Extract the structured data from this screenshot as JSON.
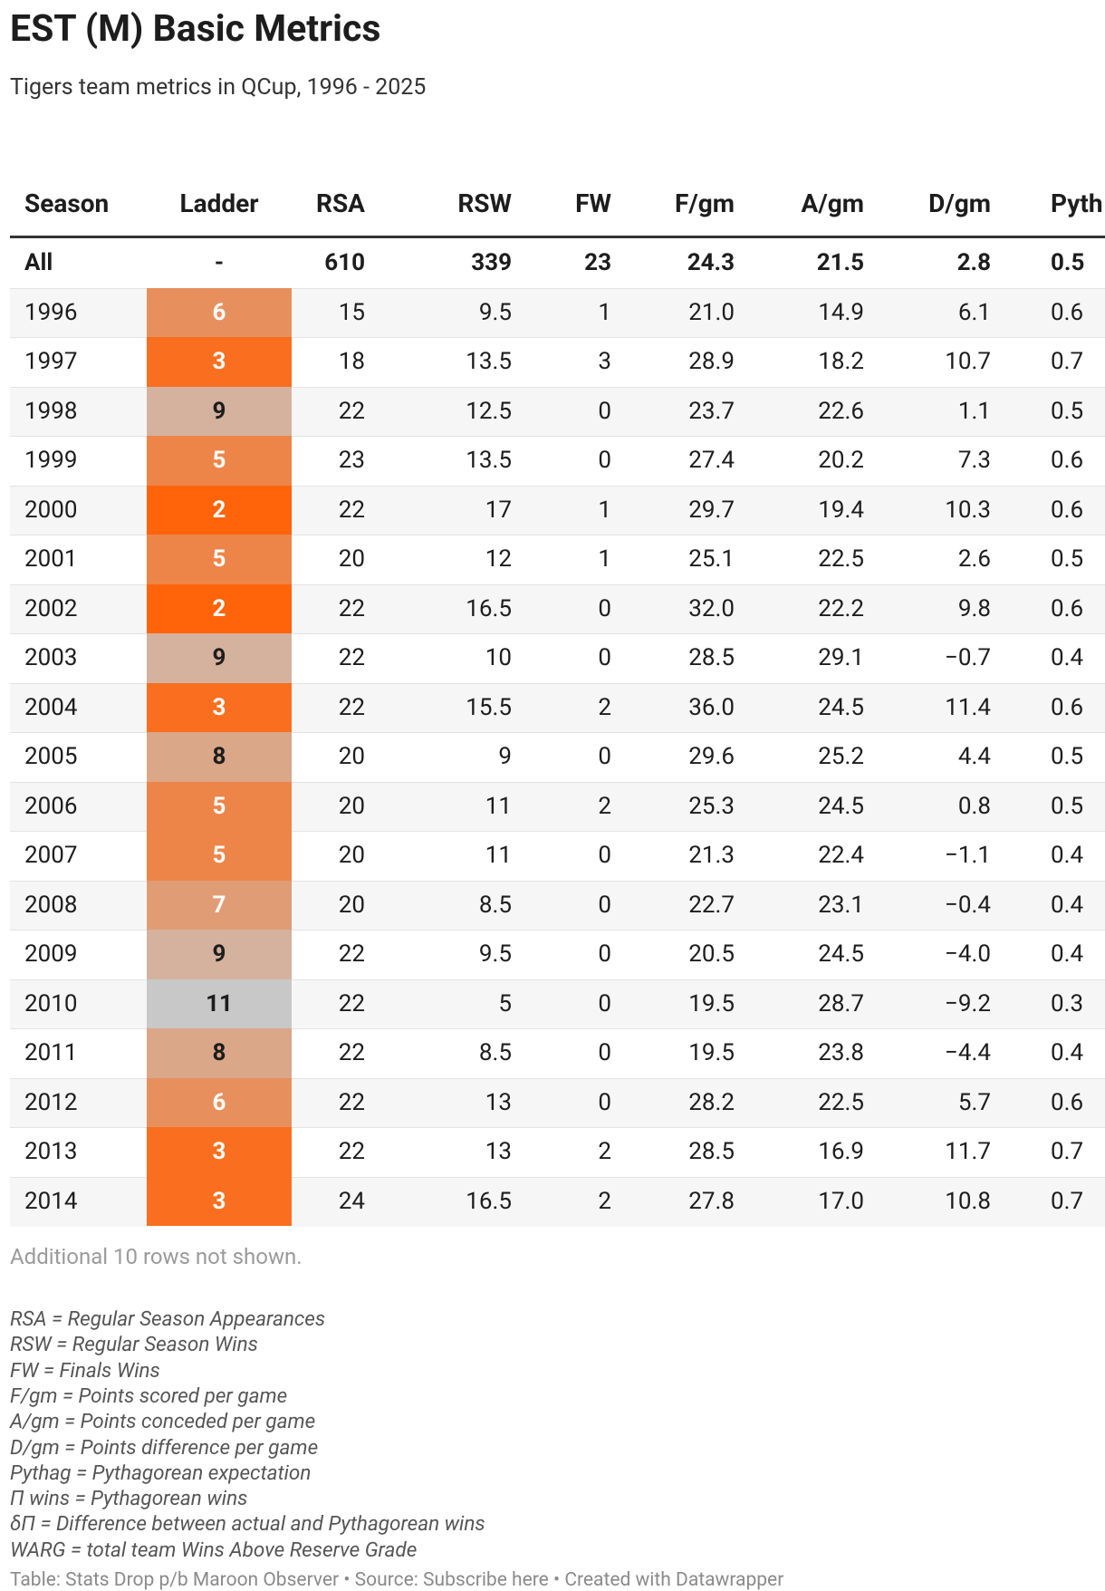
{
  "header": {
    "title": "EST (M) Basic Metrics",
    "subtitle": "Tigers team metrics in QCup, 1996 - 2025"
  },
  "table": {
    "columns": [
      "Season",
      "Ladder",
      "RSA",
      "RSW",
      "FW",
      "F/gm",
      "A/gm",
      "D/gm",
      "Pyth"
    ],
    "total_row": [
      "All",
      "-",
      "610",
      "339",
      "23",
      "24.3",
      "21.5",
      "2.8",
      "0.5"
    ],
    "rows": [
      [
        "1996",
        "6",
        "15",
        "9.5",
        "1",
        "21.0",
        "14.9",
        "6.1",
        "0.6"
      ],
      [
        "1997",
        "3",
        "18",
        "13.5",
        "3",
        "28.9",
        "18.2",
        "10.7",
        "0.7"
      ],
      [
        "1998",
        "9",
        "22",
        "12.5",
        "0",
        "23.7",
        "22.6",
        "1.1",
        "0.5"
      ],
      [
        "1999",
        "5",
        "23",
        "13.5",
        "0",
        "27.4",
        "20.2",
        "7.3",
        "0.6"
      ],
      [
        "2000",
        "2",
        "22",
        "17",
        "1",
        "29.7",
        "19.4",
        "10.3",
        "0.6"
      ],
      [
        "2001",
        "5",
        "20",
        "12",
        "1",
        "25.1",
        "22.5",
        "2.6",
        "0.5"
      ],
      [
        "2002",
        "2",
        "22",
        "16.5",
        "0",
        "32.0",
        "22.2",
        "9.8",
        "0.6"
      ],
      [
        "2003",
        "9",
        "22",
        "10",
        "0",
        "28.5",
        "29.1",
        "−0.7",
        "0.4"
      ],
      [
        "2004",
        "3",
        "22",
        "15.5",
        "2",
        "36.0",
        "24.5",
        "11.4",
        "0.6"
      ],
      [
        "2005",
        "8",
        "20",
        "9",
        "0",
        "29.6",
        "25.2",
        "4.4",
        "0.5"
      ],
      [
        "2006",
        "5",
        "20",
        "11",
        "2",
        "25.3",
        "24.5",
        "0.8",
        "0.5"
      ],
      [
        "2007",
        "5",
        "20",
        "11",
        "0",
        "21.3",
        "22.4",
        "−1.1",
        "0.4"
      ],
      [
        "2008",
        "7",
        "20",
        "8.5",
        "0",
        "22.7",
        "23.1",
        "−0.4",
        "0.4"
      ],
      [
        "2009",
        "9",
        "22",
        "9.5",
        "0",
        "20.5",
        "24.5",
        "−4.0",
        "0.4"
      ],
      [
        "2010",
        "11",
        "22",
        "5",
        "0",
        "19.5",
        "28.7",
        "−9.2",
        "0.3"
      ],
      [
        "2011",
        "8",
        "22",
        "8.5",
        "0",
        "19.5",
        "23.8",
        "−4.4",
        "0.4"
      ],
      [
        "2012",
        "6",
        "22",
        "13",
        "0",
        "28.2",
        "22.5",
        "5.7",
        "0.6"
      ],
      [
        "2013",
        "3",
        "22",
        "13",
        "2",
        "28.5",
        "16.9",
        "11.7",
        "0.7"
      ],
      [
        "2014",
        "3",
        "24",
        "16.5",
        "2",
        "27.8",
        "17.0",
        "10.8",
        "0.7"
      ]
    ],
    "more_rows_note": "Additional 10 rows not shown."
  },
  "notes": [
    "RSA = Regular Season Appearances",
    "RSW = Regular Season Wins",
    "FW = Finals Wins",
    "F/gm = Points scored per game",
    "A/gm = Points conceded per game",
    "D/gm = Points difference per game",
    "Pythag = Pythagorean expectation",
    "Π wins = Pythagorean wins",
    "δΠ = Difference between actual and Pythagorean wins",
    "WARG = total team Wins Above Reserve Grade"
  ],
  "footer": "Table: Stats Drop p/b Maroon Observer • Source: Subscribe here • Created with Datawrapper"
}
